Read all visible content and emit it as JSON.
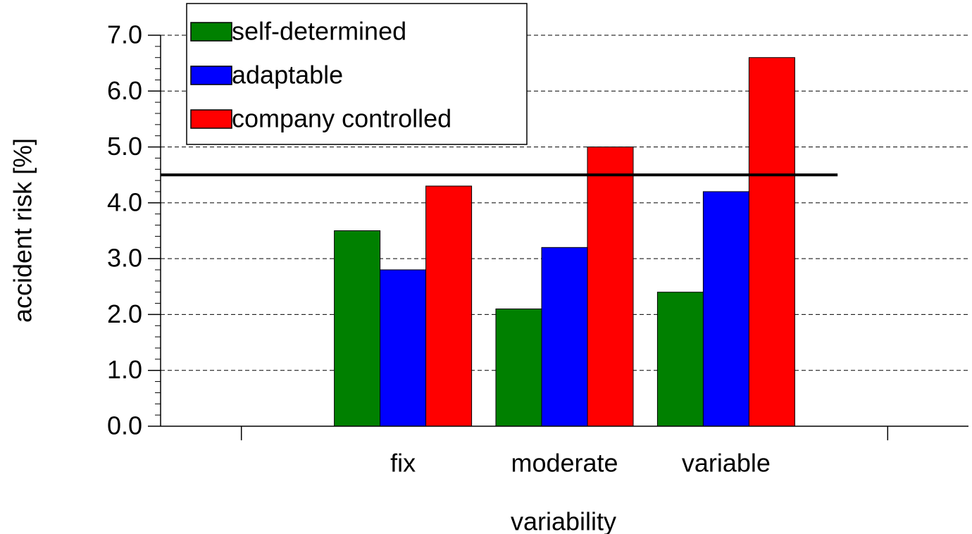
{
  "chart_data": {
    "type": "bar",
    "x_label": "variability",
    "y_label": "accident risk [%]",
    "categories": [
      null,
      "fix",
      "moderate",
      "variable",
      null
    ],
    "series": [
      {
        "name": "self-determined",
        "color": "#008000",
        "values": [
          null,
          3.5,
          2.1,
          2.4,
          null
        ]
      },
      {
        "name": "adaptable",
        "color": "#0000ff",
        "values": [
          null,
          2.8,
          3.2,
          4.2,
          null
        ]
      },
      {
        "name": "company controlled",
        "color": "#ff0000",
        "values": [
          null,
          4.3,
          5.0,
          6.6,
          null
        ]
      }
    ],
    "ylim": [
      0,
      7
    ],
    "yticks": [
      {
        "value": 0,
        "label": "0.0"
      },
      {
        "value": 1,
        "label": "1.0"
      },
      {
        "value": 2,
        "label": "2.0"
      },
      {
        "value": 3,
        "label": "3.0"
      },
      {
        "value": 4,
        "label": "4.0"
      },
      {
        "value": 5,
        "label": "5.0"
      },
      {
        "value": 6,
        "label": "6.0"
      },
      {
        "value": 7,
        "label": "7.0"
      }
    ],
    "grid": true,
    "reference_line": {
      "value": 4.5,
      "color": "#000000"
    },
    "legend": "top-left"
  }
}
